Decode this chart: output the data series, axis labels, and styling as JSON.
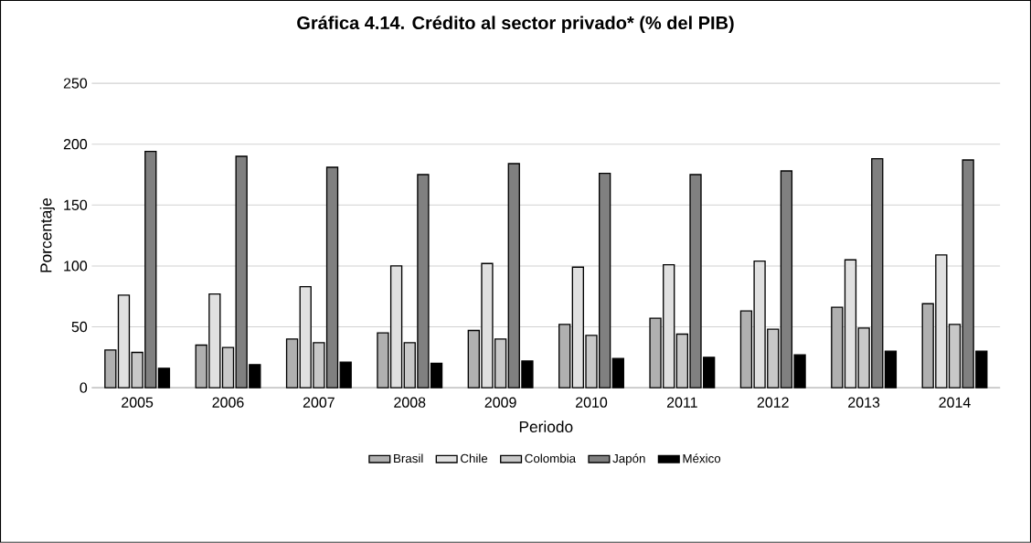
{
  "chart_data": {
    "type": "bar",
    "title": "Gráfica 4.14. Crédito al sector privado* (% del PIB)",
    "xlabel": "Periodo",
    "ylabel": "Porcentaje",
    "categories": [
      "2005",
      "2006",
      "2007",
      "2008",
      "2009",
      "2010",
      "2011",
      "2012",
      "2013",
      "2014"
    ],
    "series": [
      {
        "name": "Brasil",
        "color": "#b0b0b0",
        "values": [
          31,
          35,
          40,
          45,
          47,
          52,
          57,
          63,
          66,
          69
        ]
      },
      {
        "name": "Chile",
        "color": "#e0e0e0",
        "values": [
          76,
          77,
          83,
          100,
          102,
          99,
          101,
          104,
          105,
          109
        ]
      },
      {
        "name": "Colombia",
        "color": "#c8c8c8",
        "values": [
          29,
          33,
          37,
          37,
          40,
          43,
          44,
          48,
          49,
          52
        ]
      },
      {
        "name": "Japón",
        "color": "#808080",
        "values": [
          194,
          190,
          181,
          175,
          184,
          176,
          175,
          178,
          188,
          187
        ]
      },
      {
        "name": "México",
        "color": "#000000",
        "values": [
          16,
          19,
          21,
          20,
          22,
          24,
          25,
          27,
          30,
          30
        ]
      }
    ],
    "ylim": [
      0,
      250
    ],
    "yticks": [
      0,
      50,
      100,
      150,
      200,
      250
    ],
    "grid": "y",
    "legend": "bottom"
  }
}
